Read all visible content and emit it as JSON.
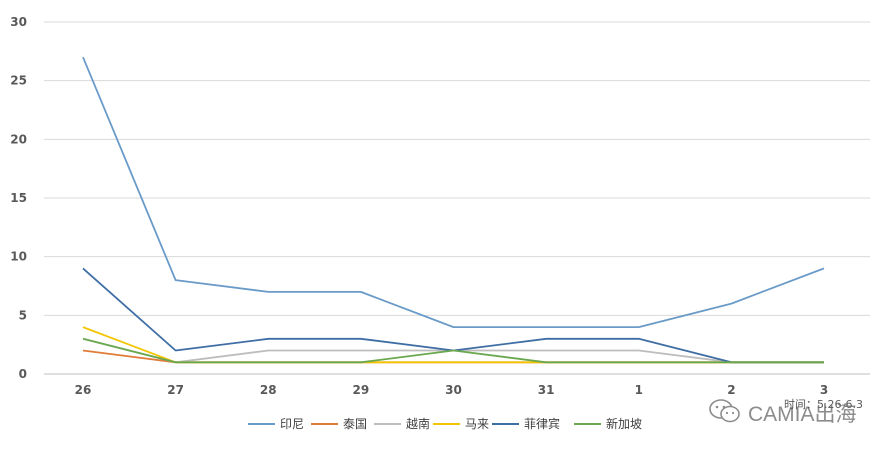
{
  "chart_data": {
    "type": "line",
    "title": "",
    "xlabel": "",
    "ylabel": "",
    "categories": [
      "26",
      "27",
      "28",
      "29",
      "30",
      "31",
      "1",
      "2",
      "3"
    ],
    "ylim": [
      0,
      30
    ],
    "yticks": [
      "0",
      "5",
      "10",
      "15",
      "20",
      "25",
      "30"
    ],
    "grid": true,
    "legend_position": "bottom",
    "series": [
      {
        "name": "印尼",
        "color": "#6a9bc8",
        "values": [
          27,
          8,
          7,
          7,
          4,
          4,
          4,
          6,
          9
        ]
      },
      {
        "name": "泰国",
        "color": "#e07b39",
        "values": [
          2,
          1,
          1,
          1,
          1,
          1,
          1,
          1,
          1
        ]
      },
      {
        "name": "越南",
        "color": "#bdbdbd",
        "values": [
          3,
          1,
          2,
          2,
          2,
          2,
          2,
          1,
          1
        ]
      },
      {
        "name": "马来",
        "color": "#f2c500",
        "values": [
          4,
          1,
          1,
          1,
          1,
          1,
          1,
          1,
          1
        ]
      },
      {
        "name": "菲律宾",
        "color": "#3f6ea5",
        "values": [
          9,
          2,
          3,
          3,
          2,
          3,
          3,
          1,
          1
        ]
      },
      {
        "name": "新加坡",
        "color": "#6aa84f",
        "values": [
          3,
          1,
          1,
          1,
          2,
          1,
          1,
          1,
          1
        ]
      }
    ]
  },
  "watermark": {
    "icon": "wechat-icon",
    "brand": "CAMIA出海",
    "note": "时间：5.26-6.3"
  }
}
